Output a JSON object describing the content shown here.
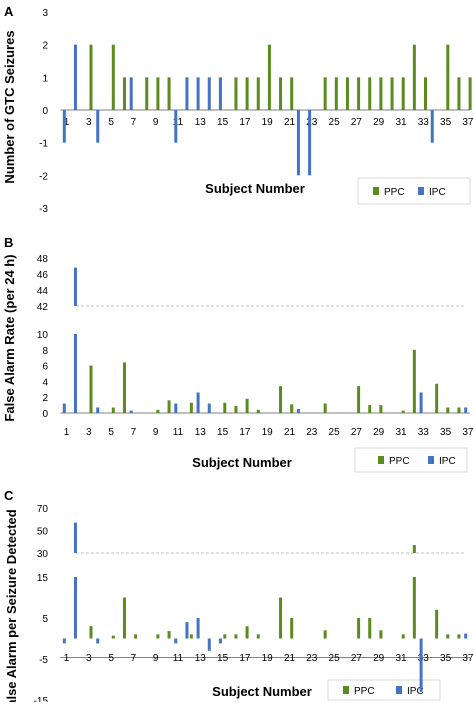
{
  "panels": [
    {
      "letter": "A",
      "ylabel": "Number of GTC Seizures",
      "xlabel": "Subject Number",
      "legend": [
        "PPC",
        "IPC"
      ]
    },
    {
      "letter": "B",
      "ylabel": "False Alarm Rate (per 24 h)",
      "xlabel": "Subject Number",
      "legend": [
        "PPC",
        "IPC"
      ]
    },
    {
      "letter": "C",
      "ylabel": "False Alarm per Seizure Detected",
      "xlabel": "Subject Number",
      "legend": [
        "PPC",
        "IPC"
      ]
    }
  ],
  "colors": {
    "PPC": "#5b8a1e",
    "IPC": "#4472c4",
    "axis": "#808080",
    "text": "#000000",
    "break_line": "#c0c0c0"
  },
  "chart_data": [
    {
      "type": "bar",
      "title": "",
      "xlabel": "Subject Number",
      "ylabel": "Number of GTC Seizures",
      "ylim": [
        -3,
        3
      ],
      "yticks": [
        -3,
        -2,
        -1,
        0,
        1,
        2,
        3
      ],
      "x_tick_labels": [
        1,
        3,
        5,
        7,
        9,
        11,
        13,
        15,
        17,
        19,
        21,
        23,
        25,
        27,
        29,
        31,
        33,
        35,
        37
      ],
      "x": [
        1,
        2,
        3,
        4,
        5,
        6,
        7,
        8,
        9,
        10,
        11,
        12,
        13,
        14,
        15,
        16,
        17,
        18,
        19,
        20,
        21,
        22,
        23,
        24,
        25,
        26,
        27,
        28,
        29,
        30,
        31,
        32,
        33,
        34,
        35,
        36,
        37
      ],
      "series": [
        {
          "name": "PPC",
          "values": [
            0,
            0,
            2,
            0,
            2,
            1,
            0,
            1,
            1,
            1,
            0,
            0,
            0,
            0,
            0,
            1,
            1,
            1,
            2,
            1,
            1,
            0,
            0,
            1,
            1,
            1,
            1,
            1,
            1,
            1,
            1,
            2,
            1,
            0,
            2,
            1,
            1
          ]
        },
        {
          "name": "IPC",
          "values": [
            -1,
            2,
            0,
            -1,
            0,
            0,
            1,
            0,
            0,
            0,
            -1,
            1,
            1,
            1,
            1,
            0,
            0,
            0,
            0,
            0,
            0,
            -2,
            -2,
            0,
            0,
            0,
            0,
            0,
            0,
            0,
            0,
            0,
            0,
            -1,
            0,
            0,
            0
          ]
        }
      ],
      "legend_position": "bottom-right",
      "grid": false
    },
    {
      "type": "bar",
      "title": "",
      "xlabel": "Subject Number",
      "ylabel": "False Alarm Rate (per 24 h)",
      "broken_axis": true,
      "ylim_lower": [
        0,
        10
      ],
      "yticks_lower": [
        0,
        2,
        4,
        6,
        8,
        10
      ],
      "ylim_upper": [
        42,
        48
      ],
      "yticks_upper": [
        42,
        44,
        46,
        48
      ],
      "x_tick_labels": [
        1,
        3,
        5,
        7,
        9,
        11,
        13,
        15,
        17,
        19,
        21,
        23,
        25,
        27,
        29,
        31,
        33,
        35,
        37
      ],
      "x": [
        1,
        2,
        3,
        4,
        5,
        6,
        7,
        8,
        9,
        10,
        11,
        12,
        13,
        14,
        15,
        16,
        17,
        18,
        19,
        20,
        21,
        22,
        23,
        24,
        25,
        26,
        27,
        28,
        29,
        30,
        31,
        32,
        33,
        34,
        35,
        36,
        37
      ],
      "series": [
        {
          "name": "PPC",
          "values": [
            0,
            0,
            6,
            0,
            0.7,
            6.4,
            0,
            0,
            0.4,
            1.6,
            0,
            1.3,
            0,
            0,
            1.3,
            0.9,
            1.8,
            0.4,
            0,
            3.4,
            1.1,
            0,
            0,
            1.2,
            0,
            0,
            3.4,
            1,
            1,
            0,
            0.3,
            8,
            0,
            3.7,
            0.7,
            0.7,
            0
          ]
        },
        {
          "name": "IPC",
          "values": [
            1.2,
            46.8,
            0,
            0.7,
            0,
            0,
            0.3,
            0,
            0,
            0,
            1.2,
            0,
            2.6,
            1.2,
            0,
            0,
            0,
            0,
            0,
            0,
            0,
            0.5,
            0,
            0,
            0,
            0,
            0,
            0,
            0,
            0,
            0,
            0,
            2.6,
            0,
            0,
            0,
            0.7
          ]
        }
      ],
      "legend_position": "bottom-right",
      "grid": false
    },
    {
      "type": "bar",
      "title": "",
      "xlabel": "Subject Number",
      "ylabel": "False Alarm per Seizure Detected",
      "broken_axis": true,
      "ylim_lower": [
        -15,
        15
      ],
      "yticks_lower": [
        -15,
        -5,
        5,
        15
      ],
      "ylim_upper": [
        30,
        70
      ],
      "yticks_upper": [
        30,
        50,
        70
      ],
      "x_tick_labels": [
        1,
        3,
        5,
        7,
        9,
        11,
        13,
        15,
        17,
        19,
        21,
        23,
        25,
        27,
        29,
        31,
        33,
        35,
        37
      ],
      "x": [
        1,
        2,
        3,
        4,
        5,
        6,
        7,
        8,
        9,
        10,
        11,
        12,
        13,
        14,
        15,
        16,
        17,
        18,
        19,
        20,
        21,
        22,
        23,
        24,
        25,
        26,
        27,
        28,
        29,
        30,
        31,
        32,
        33,
        34,
        35,
        36,
        37
      ],
      "series": [
        {
          "name": "PPC",
          "values": [
            0,
            0,
            3,
            0,
            0.7,
            10,
            1,
            0,
            1,
            1.8,
            0,
            1,
            0,
            0,
            1,
            1,
            3,
            1,
            0,
            10,
            5,
            0,
            0,
            2,
            0,
            0,
            5,
            5,
            2,
            0,
            1,
            37,
            0,
            7,
            1,
            1,
            0
          ]
        },
        {
          "name": "IPC",
          "values": [
            -1.2,
            57,
            0,
            -1.2,
            0,
            0,
            0,
            0,
            0,
            0,
            -1.2,
            4,
            5,
            -3,
            -1.2,
            0,
            0,
            0,
            0,
            0,
            0,
            0,
            0,
            0,
            0,
            0,
            0,
            0,
            0,
            0,
            0,
            0,
            -13,
            0,
            0,
            0,
            1.2
          ]
        }
      ],
      "legend_position": "bottom-right",
      "grid": false
    }
  ]
}
